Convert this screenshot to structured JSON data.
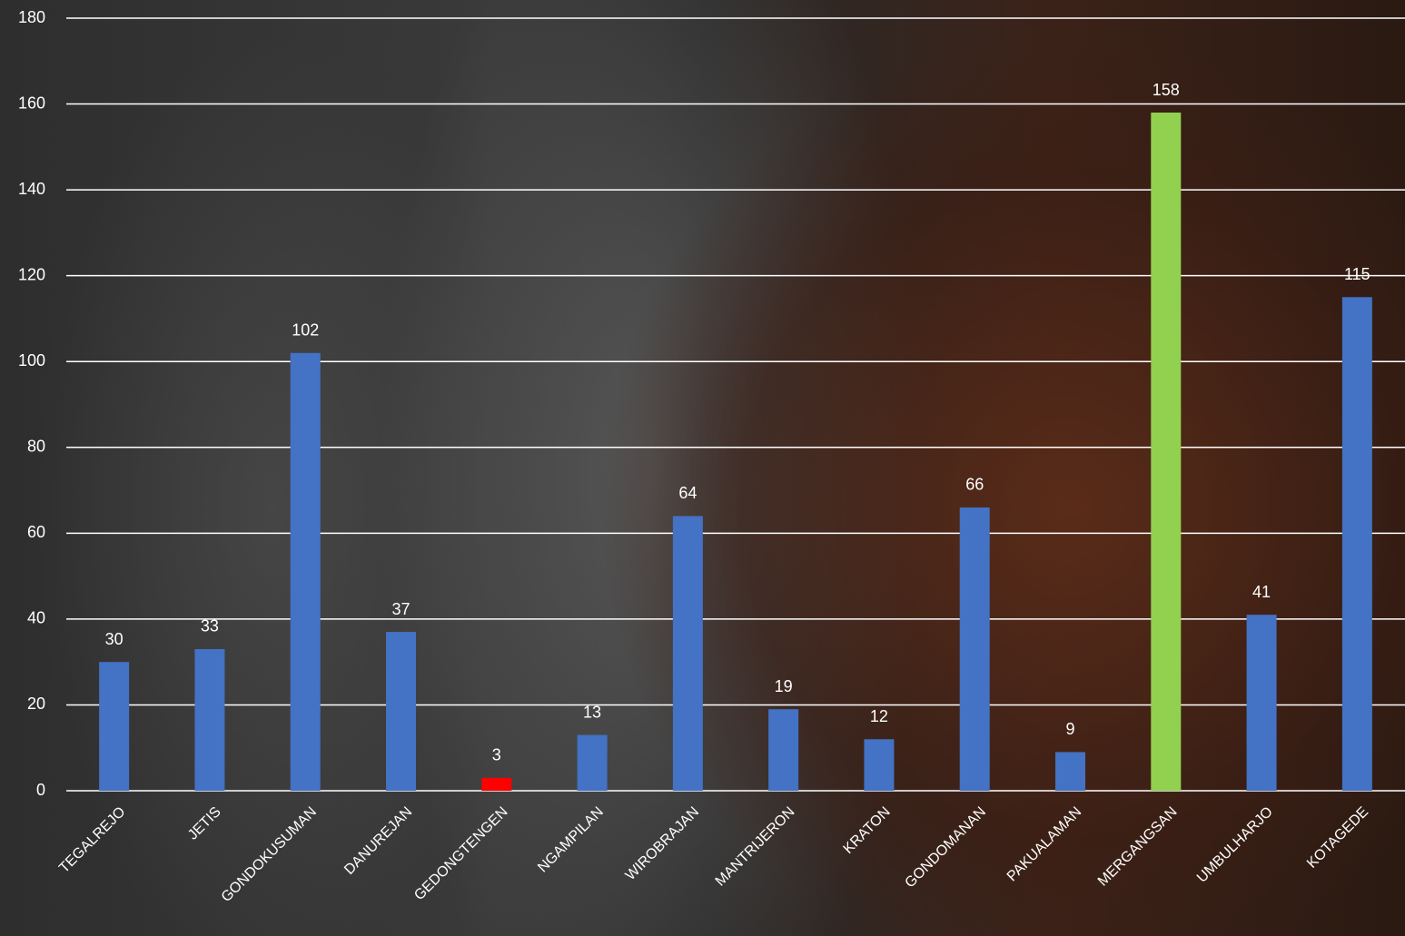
{
  "chart_data": {
    "type": "bar",
    "categories": [
      "TEGALREJO",
      "JETIS",
      "GONDOKUSUMAN",
      "DANUREJAN",
      "GEDONGTENGEN",
      "NGAMPILAN",
      "WIROBRAJAN",
      "MANTRIJERON",
      "KRATON",
      "GONDOMANAN",
      "PAKUALAMAN",
      "MERGANGSAN",
      "UMBULHARJO",
      "KOTAGEDE"
    ],
    "values": [
      30,
      33,
      102,
      37,
      3,
      13,
      64,
      19,
      12,
      66,
      9,
      158,
      41,
      115
    ],
    "colors": [
      "#4472c4",
      "#4472c4",
      "#4472c4",
      "#4472c4",
      "#ff0000",
      "#4472c4",
      "#4472c4",
      "#4472c4",
      "#4472c4",
      "#4472c4",
      "#4472c4",
      "#92d050",
      "#4472c4",
      "#4472c4"
    ],
    "ylim": [
      0,
      180
    ],
    "yticks": [
      0,
      20,
      40,
      60,
      80,
      100,
      120,
      140,
      160,
      180
    ],
    "grid": true
  }
}
